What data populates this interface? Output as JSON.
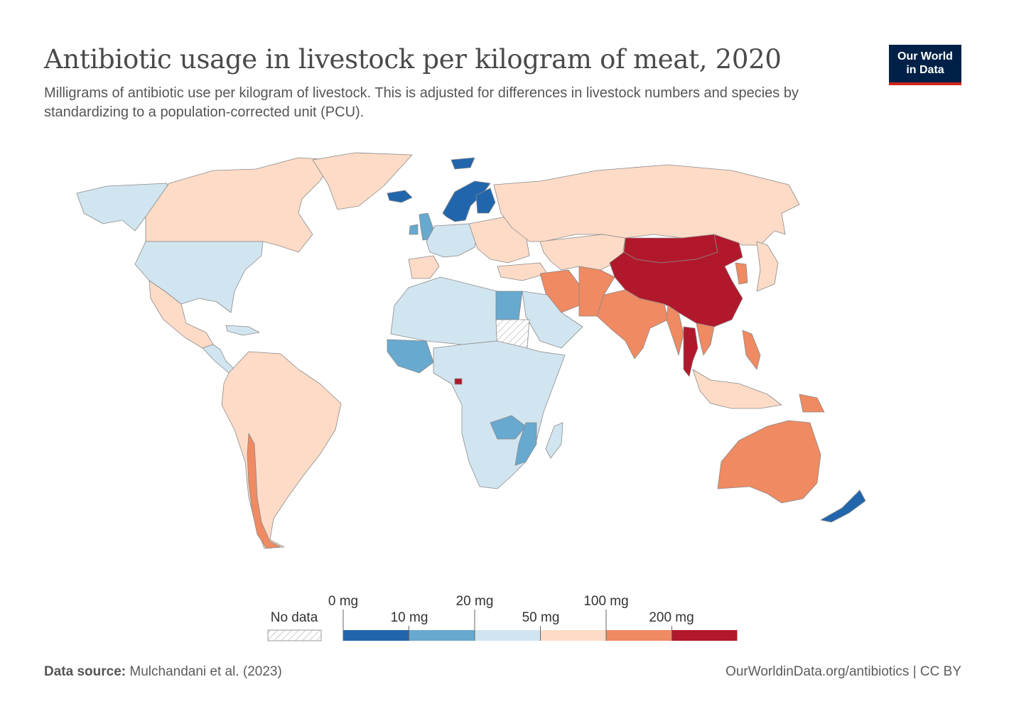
{
  "header": {
    "title": "Antibiotic usage in livestock per kilogram of meat, 2020",
    "subtitle": "Milligrams of antibiotic use per kilogram of livestock. This is adjusted for differences in livestock numbers and species by standardizing to a population-corrected unit (PCU)."
  },
  "logo": {
    "line1": "Our World",
    "line2": "in Data"
  },
  "legend": {
    "no_data_label": "No data",
    "ticks_top": [
      "0 mg",
      "20 mg",
      "100 mg"
    ],
    "ticks_bottom": [
      "10 mg",
      "50 mg",
      "200 mg"
    ],
    "bins": [
      {
        "from": 0,
        "to": 10,
        "color": "#2166ac"
      },
      {
        "from": 10,
        "to": 20,
        "color": "#67a9cf"
      },
      {
        "from": 20,
        "to": 50,
        "color": "#d1e5f0"
      },
      {
        "from": 50,
        "to": 100,
        "color": "#fddbc7"
      },
      {
        "from": 100,
        "to": 200,
        "color": "#ef8a62"
      },
      {
        "from": 200,
        "to": null,
        "color": "#b2182b"
      }
    ]
  },
  "colors": {
    "bin_0_10": "#2166ac",
    "bin_10_20": "#67a9cf",
    "bin_20_50": "#d1e5f0",
    "bin_50_100": "#fddbc7",
    "bin_100_200": "#ef8a62",
    "bin_200_plus": "#b2182b",
    "no_data_hatch": "#cccccc",
    "border": "#8a8a8a"
  },
  "map_regions": [
    {
      "region": "Alaska",
      "bin": "bin_20_50"
    },
    {
      "region": "Canada",
      "bin": "bin_50_100"
    },
    {
      "region": "United States",
      "bin": "bin_20_50"
    },
    {
      "region": "Mexico",
      "bin": "bin_50_100"
    },
    {
      "region": "Central America",
      "bin": "bin_20_50"
    },
    {
      "region": "Caribbean",
      "bin": "bin_20_50"
    },
    {
      "region": "South America",
      "bin": "bin_50_100"
    },
    {
      "region": "Chile",
      "bin": "bin_100_200"
    },
    {
      "region": "Greenland",
      "bin": "bin_50_100"
    },
    {
      "region": "Svalbard",
      "bin": "bin_0_10"
    },
    {
      "region": "Iceland",
      "bin": "bin_0_10"
    },
    {
      "region": "Norway and Sweden",
      "bin": "bin_0_10"
    },
    {
      "region": "Finland",
      "bin": "bin_0_10"
    },
    {
      "region": "United Kingdom",
      "bin": "bin_10_20"
    },
    {
      "region": "Ireland",
      "bin": "bin_10_20"
    },
    {
      "region": "Western Europe",
      "bin": "bin_20_50"
    },
    {
      "region": "Iberia",
      "bin": "bin_50_100"
    },
    {
      "region": "Eastern Europe",
      "bin": "bin_50_100"
    },
    {
      "region": "Russia",
      "bin": "bin_50_100"
    },
    {
      "region": "Turkey",
      "bin": "bin_50_100"
    },
    {
      "region": "Central Asia",
      "bin": "bin_50_100"
    },
    {
      "region": "Mongolia",
      "bin": "bin_200_plus"
    },
    {
      "region": "China",
      "bin": "bin_200_plus"
    },
    {
      "region": "Iran",
      "bin": "bin_100_200"
    },
    {
      "region": "Pakistan and Afghanistan",
      "bin": "bin_100_200"
    },
    {
      "region": "India",
      "bin": "bin_100_200"
    },
    {
      "region": "Myanmar",
      "bin": "bin_100_200"
    },
    {
      "region": "Thailand",
      "bin": "bin_200_plus"
    },
    {
      "region": "Vietnam",
      "bin": "bin_100_200"
    },
    {
      "region": "Philippines",
      "bin": "bin_100_200"
    },
    {
      "region": "Japan",
      "bin": "bin_50_100"
    },
    {
      "region": "Korea",
      "bin": "bin_100_200"
    },
    {
      "region": "Indonesia",
      "bin": "bin_50_100"
    },
    {
      "region": "Papua New Guinea",
      "bin": "bin_100_200"
    },
    {
      "region": "Australia",
      "bin": "bin_100_200"
    },
    {
      "region": "New Zealand",
      "bin": "bin_0_10"
    },
    {
      "region": "Arabian Peninsula",
      "bin": "bin_20_50"
    },
    {
      "region": "North Africa",
      "bin": "bin_20_50"
    },
    {
      "region": "Egypt",
      "bin": "bin_10_20"
    },
    {
      "region": "Sudan",
      "bin": "no_data"
    },
    {
      "region": "West Africa coast",
      "bin": "bin_10_20"
    },
    {
      "region": "Sub-Saharan Africa",
      "bin": "bin_20_50"
    },
    {
      "region": "Zambia",
      "bin": "bin_10_20"
    },
    {
      "region": "Mozambique",
      "bin": "bin_10_20"
    },
    {
      "region": "Madagascar",
      "bin": "bin_20_50"
    },
    {
      "region": "Equatorial Guinea",
      "bin": "bin_200_plus"
    }
  ],
  "footer": {
    "source_label": "Data source:",
    "source_text": "Mulchandani et al. (2023)",
    "url": "OurWorldinData.org/antibiotics | CC BY"
  }
}
